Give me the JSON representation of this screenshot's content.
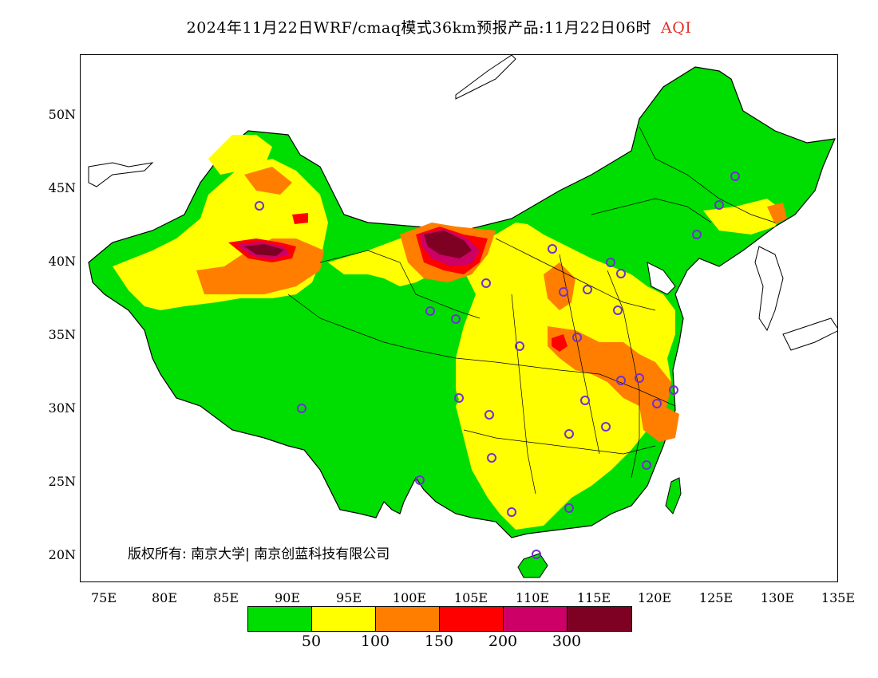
{
  "title": {
    "main": "2024年11月22日WRF/cmaq模式36km预报产品:11月22日06时",
    "aqi": "AQI",
    "aqi_color": "#e0302a"
  },
  "map": {
    "lat_labels": [
      "50N",
      "45N",
      "40N",
      "35N",
      "30N",
      "25N",
      "20N"
    ],
    "lon_labels": [
      "75E",
      "80E",
      "85E",
      "90E",
      "95E",
      "100E",
      "105E",
      "110E",
      "115E",
      "120E",
      "125E",
      "130E",
      "135E"
    ],
    "copyright": "版权所有: 南京大学| 南京创蓝科技有限公司"
  },
  "legend": {
    "colors": [
      "#00dd00",
      "#ffff00",
      "#ff7e00",
      "#ff0000",
      "#cc0066",
      "#7e0023"
    ],
    "labels": [
      "50",
      "100",
      "150",
      "200",
      "300"
    ]
  },
  "colors": {
    "station_marker": "#7030d0",
    "boundary": "#000000"
  }
}
